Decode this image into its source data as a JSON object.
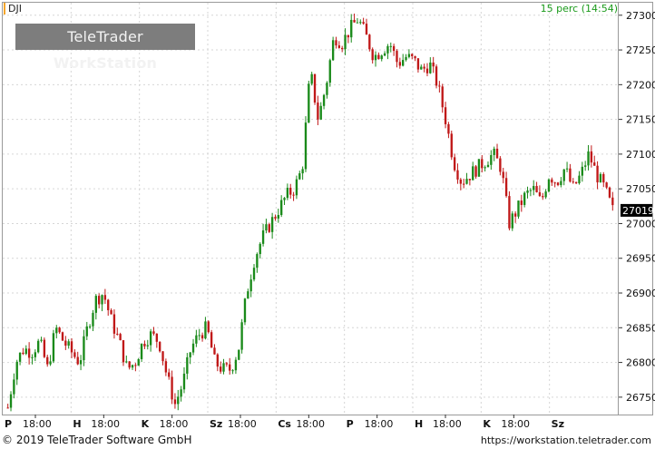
{
  "header": {
    "symbol": "DJI",
    "interval": "15 perc (14:54)"
  },
  "watermark": {
    "brand": "TeleTrader",
    "product": "WorkStation"
  },
  "footer": {
    "copyright": "© 2019 TeleTrader Software GmbH",
    "url": "https://workstation.teletrader.com"
  },
  "colors": {
    "up": "#1a8a1a",
    "down": "#c01818",
    "grid": "#d6d6d6",
    "accent": "#f4a52a"
  },
  "chart_data": {
    "type": "candlestick",
    "y_ticks": [
      26750,
      26800,
      26850,
      26900,
      26950,
      27000,
      27050,
      27100,
      27150,
      27200,
      27250,
      27300
    ],
    "ylim": [
      26725,
      27318
    ],
    "last_price": 27019,
    "x_labels": [
      {
        "day": "P",
        "time": "18:00"
      },
      {
        "day": "H",
        "time": "18:00"
      },
      {
        "day": "K",
        "time": "18:00"
      },
      {
        "day": "Sz",
        "time": "18:00"
      },
      {
        "day": "Cs",
        "time": "18:00"
      },
      {
        "day": "P",
        "time": "18:00"
      },
      {
        "day": "H",
        "time": "18:00"
      },
      {
        "day": "K",
        "time": "18:00"
      },
      {
        "day": "Sz",
        "time": ""
      }
    ],
    "path": [
      26735,
      26800,
      26820,
      26815,
      26830,
      26790,
      26850,
      26830,
      26815,
      26800,
      26850,
      26890,
      26900,
      26860,
      26830,
      26790,
      26800,
      26830,
      26840,
      26830,
      26780,
      26740,
      26770,
      26820,
      26840,
      26850,
      26800,
      26790,
      26790,
      26820,
      26900,
      26950,
      26980,
      27000,
      27020,
      27040,
      27050,
      27080,
      27220,
      27150,
      27200,
      27270,
      27260,
      27280,
      27295,
      27270,
      27240,
      27250,
      27260,
      27230,
      27240,
      27235,
      27220,
      27230,
      27200,
      27150,
      27090,
      27060,
      27070,
      27080,
      27090,
      27100,
      27080,
      27000,
      27020,
      27040,
      27050,
      27030,
      27070,
      27060,
      27080,
      27050,
      27070,
      27100,
      27070,
      27050,
      27019
    ]
  }
}
